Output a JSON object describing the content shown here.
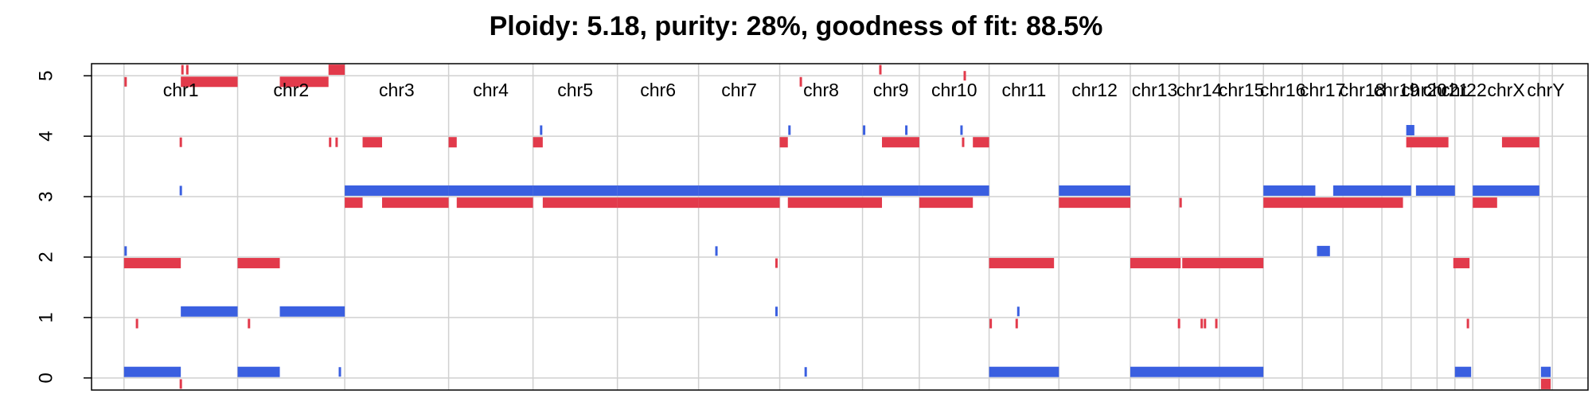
{
  "chart_data": {
    "type": "scatter",
    "title": "Ploidy: 5.18, purity: 28%, goodness of fit: 88.5%",
    "xlabel": "",
    "ylabel": "",
    "ylim": [
      -0.2,
      5.2
    ],
    "yticks": [
      0,
      1,
      2,
      3,
      4,
      5
    ],
    "grid": true,
    "legend": "none",
    "colors": {
      "major": "#E23A4B",
      "minor": "#3A5FE0",
      "grid": "#D0D0D0"
    },
    "chromosomes": [
      {
        "name": "chr1",
        "start": 0.0,
        "end": 7.0
      },
      {
        "name": "chr2",
        "start": 7.0,
        "end": 13.6
      },
      {
        "name": "chr3",
        "start": 13.6,
        "end": 20.0
      },
      {
        "name": "chr4",
        "start": 20.0,
        "end": 25.2
      },
      {
        "name": "chr5",
        "start": 25.2,
        "end": 30.4
      },
      {
        "name": "chr6",
        "start": 30.4,
        "end": 35.4
      },
      {
        "name": "chr7",
        "start": 35.4,
        "end": 40.4
      },
      {
        "name": "chr8",
        "start": 40.4,
        "end": 45.5
      },
      {
        "name": "chr9",
        "start": 45.5,
        "end": 49.0
      },
      {
        "name": "chr10",
        "start": 49.0,
        "end": 53.3
      },
      {
        "name": "chr11",
        "start": 53.3,
        "end": 57.6
      },
      {
        "name": "chr12",
        "start": 57.6,
        "end": 62.0
      },
      {
        "name": "chr13",
        "start": 62.0,
        "end": 65.0
      },
      {
        "name": "chr14",
        "start": 65.0,
        "end": 67.5
      },
      {
        "name": "chr15",
        "start": 67.5,
        "end": 70.2
      },
      {
        "name": "chr16",
        "start": 70.2,
        "end": 72.6
      },
      {
        "name": "chr17",
        "start": 72.6,
        "end": 75.1
      },
      {
        "name": "chr18",
        "start": 75.1,
        "end": 77.5
      },
      {
        "name": "chr19",
        "start": 77.5,
        "end": 79.3
      },
      {
        "name": "chr20",
        "start": 79.3,
        "end": 80.9
      },
      {
        "name": "chr21",
        "start": 80.9,
        "end": 82.0
      },
      {
        "name": "chr22",
        "start": 82.0,
        "end": 83.1
      },
      {
        "name": "chrX",
        "start": 83.1,
        "end": 87.2
      },
      {
        "name": "chrY",
        "start": 87.2,
        "end": 88.0
      }
    ],
    "xlim": [
      -2.0,
      90.2
    ],
    "series": [
      {
        "key": "major",
        "segments": [
          [
            0.0,
            3.5,
            1.9
          ],
          [
            3.5,
            7.0,
            4.9
          ],
          [
            7.0,
            9.6,
            1.9
          ],
          [
            9.6,
            12.6,
            4.9
          ],
          [
            12.6,
            13.6,
            5.1
          ],
          [
            13.6,
            14.7,
            2.9
          ],
          [
            14.7,
            15.9,
            3.9
          ],
          [
            15.9,
            20.0,
            2.9
          ],
          [
            20.0,
            20.5,
            3.9
          ],
          [
            20.5,
            25.2,
            2.9
          ],
          [
            25.2,
            25.8,
            3.9
          ],
          [
            25.8,
            30.4,
            2.9
          ],
          [
            30.4,
            35.4,
            2.9
          ],
          [
            35.4,
            40.4,
            2.9
          ],
          [
            40.4,
            40.9,
            3.9
          ],
          [
            40.9,
            46.7,
            2.9
          ],
          [
            46.7,
            49.0,
            3.9
          ],
          [
            49.0,
            52.3,
            2.9
          ],
          [
            52.3,
            53.3,
            3.9
          ],
          [
            53.3,
            57.3,
            1.9
          ],
          [
            57.6,
            62.0,
            2.9
          ],
          [
            62.0,
            65.1,
            1.9
          ],
          [
            65.2,
            70.2,
            1.9
          ],
          [
            70.2,
            78.8,
            2.9
          ],
          [
            79.0,
            81.6,
            3.9
          ],
          [
            81.9,
            82.9,
            1.9
          ],
          [
            83.1,
            84.6,
            2.9
          ],
          [
            84.9,
            87.2,
            3.9
          ],
          [
            87.3,
            87.9,
            -0.1
          ]
        ],
        "points": [
          [
            0.1,
            4.9
          ],
          [
            0.8,
            0.9
          ],
          [
            3.5,
            3.9
          ],
          [
            3.6,
            5.1
          ],
          [
            3.9,
            5.1
          ],
          [
            3.5,
            -0.1
          ],
          [
            7.7,
            0.9
          ],
          [
            12.7,
            3.9
          ],
          [
            13.1,
            3.9
          ],
          [
            41.7,
            4.9
          ],
          [
            46.6,
            5.1
          ],
          [
            51.7,
            3.9
          ],
          [
            51.8,
            5.0
          ],
          [
            40.2,
            1.9
          ],
          [
            53.4,
            0.9
          ],
          [
            55.0,
            0.9
          ],
          [
            65.0,
            0.9
          ],
          [
            65.1,
            2.9
          ],
          [
            66.4,
            0.9
          ],
          [
            66.6,
            0.9
          ],
          [
            67.3,
            0.9
          ],
          [
            82.8,
            0.9
          ],
          [
            67.4,
            1.9
          ]
        ]
      },
      {
        "key": "minor",
        "segments": [
          [
            0.0,
            3.5,
            0.1
          ],
          [
            3.5,
            7.0,
            1.1
          ],
          [
            7.0,
            9.6,
            0.1
          ],
          [
            9.6,
            13.6,
            1.1
          ],
          [
            13.6,
            20.0,
            3.1
          ],
          [
            20.0,
            25.2,
            3.1
          ],
          [
            25.2,
            30.4,
            3.1
          ],
          [
            30.4,
            35.4,
            3.1
          ],
          [
            35.4,
            40.4,
            3.1
          ],
          [
            40.4,
            45.5,
            3.1
          ],
          [
            45.5,
            49.0,
            3.1
          ],
          [
            49.0,
            53.3,
            3.1
          ],
          [
            53.3,
            57.6,
            0.1
          ],
          [
            57.6,
            62.0,
            3.1
          ],
          [
            62.0,
            70.2,
            0.1
          ],
          [
            70.2,
            73.4,
            3.1
          ],
          [
            73.5,
            74.3,
            2.1
          ],
          [
            74.5,
            79.3,
            3.1
          ],
          [
            79.0,
            79.5,
            4.1
          ],
          [
            79.6,
            82.0,
            3.1
          ],
          [
            82.0,
            83.0,
            0.1
          ],
          [
            83.1,
            87.2,
            3.1
          ],
          [
            87.3,
            87.9,
            0.1
          ]
        ],
        "points": [
          [
            0.1,
            2.1
          ],
          [
            3.5,
            3.1
          ],
          [
            13.3,
            0.1
          ],
          [
            25.7,
            4.1
          ],
          [
            41.0,
            4.1
          ],
          [
            45.6,
            4.1
          ],
          [
            48.2,
            4.1
          ],
          [
            51.6,
            4.1
          ],
          [
            36.5,
            2.1
          ],
          [
            40.2,
            1.1
          ],
          [
            42.0,
            0.1
          ],
          [
            55.1,
            1.1
          ]
        ]
      }
    ]
  }
}
